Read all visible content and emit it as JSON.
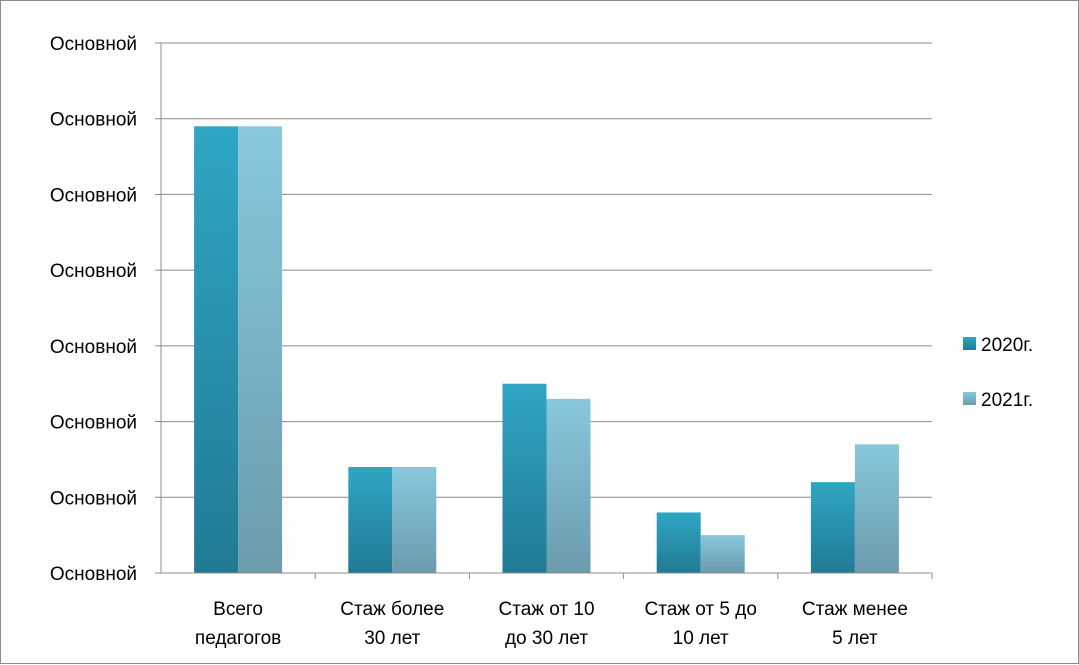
{
  "chart_data": {
    "type": "bar",
    "title": "",
    "xlabel": "",
    "ylabel": "",
    "categories": [
      [
        "Всего",
        "педагогов"
      ],
      [
        "Стаж более",
        "30 лет"
      ],
      [
        "Стаж от 10",
        "до 30 лет"
      ],
      [
        "Стаж от 5 до",
        "10 лет"
      ],
      [
        "Стаж менее",
        "5 лет"
      ]
    ],
    "y_tick_labels": [
      "Основной",
      "Основной",
      "Основной",
      "Основной",
      "Основной",
      "Основной",
      "Основной",
      "Основной"
    ],
    "ylim": [
      0,
      7
    ],
    "grid": true,
    "legend_position": "right",
    "series": [
      {
        "name": "2020г.",
        "color": "#2b95b3",
        "values": [
          5.9,
          1.4,
          2.5,
          0.8,
          1.2
        ]
      },
      {
        "name": "2021г.",
        "color": "#7fc0d6",
        "values": [
          5.9,
          1.4,
          2.3,
          0.5,
          1.7
        ]
      }
    ]
  }
}
